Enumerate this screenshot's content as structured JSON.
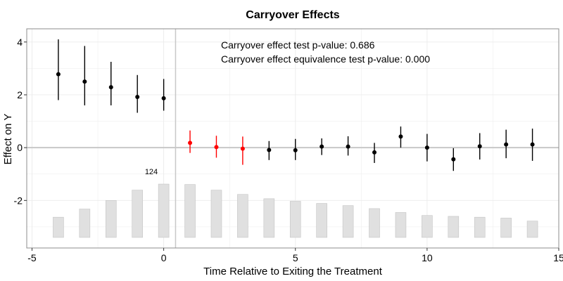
{
  "chart_data": {
    "type": "scatter",
    "title": "Carryover Effects",
    "xlabel": "Time Relative to Exiting the Treatment",
    "ylabel": "Effect on Y",
    "xlim": [
      -5.2,
      15
    ],
    "ylim": [
      -3.8,
      4.5
    ],
    "x_ticks": [
      "-5",
      "0",
      "5",
      "10",
      "15"
    ],
    "y_ticks": [
      "-2",
      "0",
      "2",
      "4"
    ],
    "grid": true,
    "annotations": [
      "Carryover effect test p-value: 0.686",
      "Carryover effect equivalence test p-value: 0.000"
    ],
    "bar_label": "124",
    "points": [
      {
        "x": -4,
        "y": 2.78,
        "lo": 1.8,
        "hi": 4.1,
        "color": "#000000"
      },
      {
        "x": -3,
        "y": 2.5,
        "lo": 1.6,
        "hi": 3.85,
        "color": "#000000"
      },
      {
        "x": -2,
        "y": 2.29,
        "lo": 1.6,
        "hi": 3.25,
        "color": "#000000"
      },
      {
        "x": -1,
        "y": 1.92,
        "lo": 1.32,
        "hi": 2.75,
        "color": "#000000"
      },
      {
        "x": 0,
        "y": 1.87,
        "lo": 1.4,
        "hi": 2.6,
        "color": "#000000"
      },
      {
        "x": 1,
        "y": 0.18,
        "lo": -0.2,
        "hi": 0.65,
        "color": "#ff0000"
      },
      {
        "x": 2,
        "y": 0.02,
        "lo": -0.38,
        "hi": 0.45,
        "color": "#ff0000"
      },
      {
        "x": 3,
        "y": -0.04,
        "lo": -0.65,
        "hi": 0.42,
        "color": "#ff0000"
      },
      {
        "x": 4,
        "y": -0.09,
        "lo": -0.47,
        "hi": 0.25,
        "color": "#000000"
      },
      {
        "x": 5,
        "y": -0.1,
        "lo": -0.47,
        "hi": 0.33,
        "color": "#000000"
      },
      {
        "x": 6,
        "y": 0.04,
        "lo": -0.28,
        "hi": 0.35,
        "color": "#000000"
      },
      {
        "x": 7,
        "y": 0.04,
        "lo": -0.3,
        "hi": 0.43,
        "color": "#000000"
      },
      {
        "x": 8,
        "y": -0.18,
        "lo": -0.58,
        "hi": 0.18,
        "color": "#000000"
      },
      {
        "x": 9,
        "y": 0.42,
        "lo": 0.0,
        "hi": 0.8,
        "color": "#000000"
      },
      {
        "x": 10,
        "y": 0.0,
        "lo": -0.52,
        "hi": 0.52,
        "color": "#000000"
      },
      {
        "x": 11,
        "y": -0.44,
        "lo": -0.88,
        "hi": -0.02,
        "color": "#000000"
      },
      {
        "x": 12,
        "y": 0.05,
        "lo": -0.45,
        "hi": 0.55,
        "color": "#000000"
      },
      {
        "x": 13,
        "y": 0.12,
        "lo": -0.4,
        "hi": 0.68,
        "color": "#000000"
      },
      {
        "x": 14,
        "y": 0.12,
        "lo": -0.5,
        "hi": 0.72,
        "color": "#000000"
      }
    ],
    "bars": [
      {
        "x": -4,
        "count": 47
      },
      {
        "x": -3,
        "count": 66
      },
      {
        "x": -2,
        "count": 86
      },
      {
        "x": -1,
        "count": 110
      },
      {
        "x": 0,
        "count": 124
      },
      {
        "x": 1,
        "count": 123
      },
      {
        "x": 2,
        "count": 110
      },
      {
        "x": 3,
        "count": 100
      },
      {
        "x": 4,
        "count": 90
      },
      {
        "x": 5,
        "count": 84
      },
      {
        "x": 6,
        "count": 79
      },
      {
        "x": 7,
        "count": 74
      },
      {
        "x": 8,
        "count": 67
      },
      {
        "x": 9,
        "count": 58
      },
      {
        "x": 10,
        "count": 51
      },
      {
        "x": 11,
        "count": 49
      },
      {
        "x": 12,
        "count": 47
      },
      {
        "x": 13,
        "count": 45
      },
      {
        "x": 14,
        "count": 38
      }
    ],
    "colors": {
      "pre": "#000000",
      "carryover": "#ff0000",
      "bars": "#e0e0e0",
      "bar_border": "#c4c4c4"
    }
  }
}
